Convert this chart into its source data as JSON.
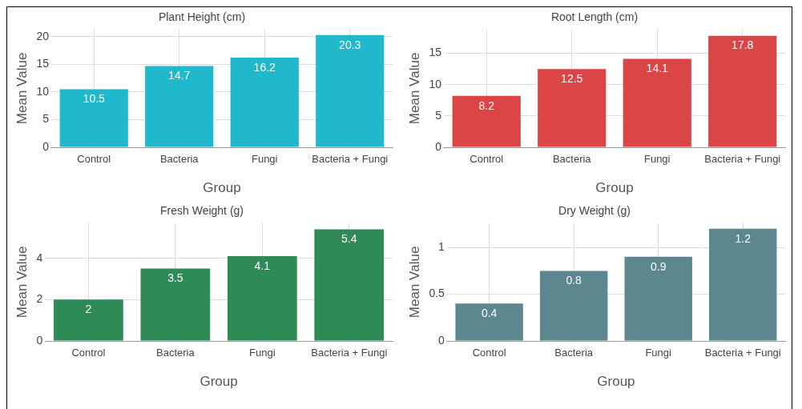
{
  "chart_data": [
    {
      "type": "bar",
      "title": "Plant Height (cm)",
      "xlabel": "Group",
      "ylabel": "Mean Value",
      "categories": [
        "Control",
        "Bacteria",
        "Fungi",
        "Bacteria + Fungi"
      ],
      "values": [
        10.5,
        14.7,
        16.2,
        20.3
      ],
      "color": "#1fb8cd",
      "ylim": [
        0,
        21.3
      ],
      "yticks": [
        0,
        5,
        10,
        15,
        20
      ],
      "grid": true,
      "data_labels": true
    },
    {
      "type": "bar",
      "title": "Root Length (cm)",
      "xlabel": "Group",
      "ylabel": "Mean Value",
      "categories": [
        "Control",
        "Bacteria",
        "Fungi",
        "Bacteria + Fungi"
      ],
      "values": [
        8.2,
        12.5,
        14.1,
        17.8
      ],
      "color": "#db4545",
      "ylim": [
        0,
        18.8
      ],
      "yticks": [
        0,
        5,
        10,
        15
      ],
      "grid": true,
      "data_labels": true
    },
    {
      "type": "bar",
      "title": "Fresh Weight (g)",
      "xlabel": "Group",
      "ylabel": "Mean Value",
      "categories": [
        "Control",
        "Bacteria",
        "Fungi",
        "Bacteria + Fungi"
      ],
      "values": [
        2,
        3.5,
        4.1,
        5.4
      ],
      "color": "#2e8b57",
      "ylim": [
        0,
        5.7
      ],
      "yticks": [
        0,
        2,
        4
      ],
      "grid": true,
      "data_labels": true
    },
    {
      "type": "bar",
      "title": "Dry Weight (g)",
      "xlabel": "Group",
      "ylabel": "Mean Value",
      "categories": [
        "Control",
        "Bacteria",
        "Fungi",
        "Bacteria + Fungi"
      ],
      "values": [
        0.4,
        0.75,
        0.9,
        1.2
      ],
      "value_labels": [
        "0.4",
        "0.8",
        "0.9",
        "1.2"
      ],
      "color": "#5d878f",
      "ylim": [
        0,
        1.26
      ],
      "yticks": [
        0,
        0.5,
        1
      ],
      "grid": true
    }
  ]
}
